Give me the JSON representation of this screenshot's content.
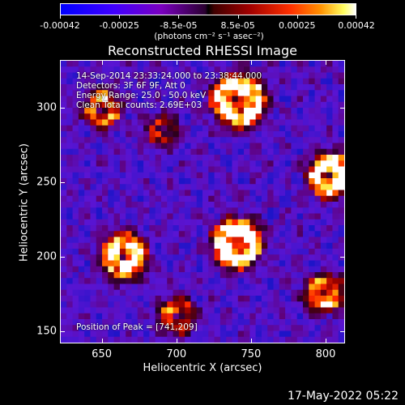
{
  "chart_data": {
    "type": "heatmap",
    "title": "Reconstructed RHESSI Image",
    "xlabel": "Heliocentric X (arcsec)",
    "ylabel": "Heliocentric Y (arcsec)",
    "xlim": [
      622,
      813
    ],
    "ylim": [
      142,
      332
    ],
    "x_ticks": [
      "650",
      "700",
      "750",
      "800"
    ],
    "y_ticks": [
      "150",
      "200",
      "250",
      "300"
    ],
    "colorbar": {
      "tick_labels": [
        "-0.00042",
        "-0.00025",
        "-8.5e-05",
        "8.5e-05",
        "0.00025",
        "0.00042"
      ],
      "units": "(photons cm⁻² s⁻¹ asec⁻²)",
      "range": [
        -0.00042,
        0.00042
      ],
      "colors": [
        "#0000ff",
        "#7a00c0",
        "#000000",
        "#a00000",
        "#ff3000",
        "#ff9000",
        "#ffffff"
      ]
    },
    "annotations": {
      "time": "14-Sep-2014 23:33:24.000 to 23:38:44.000",
      "detectors": "Detectors: 3F 6F 9F, Att 0",
      "energy": "Energy Range: 25.0 - 50.0 keV",
      "clean": "Clean    Total counts: 2.69E+03",
      "peak": "Position of Peak = [741,209]"
    },
    "peak": [
      741,
      209
    ]
  },
  "footer": {
    "timestamp": "17-May-2022 05:22"
  }
}
